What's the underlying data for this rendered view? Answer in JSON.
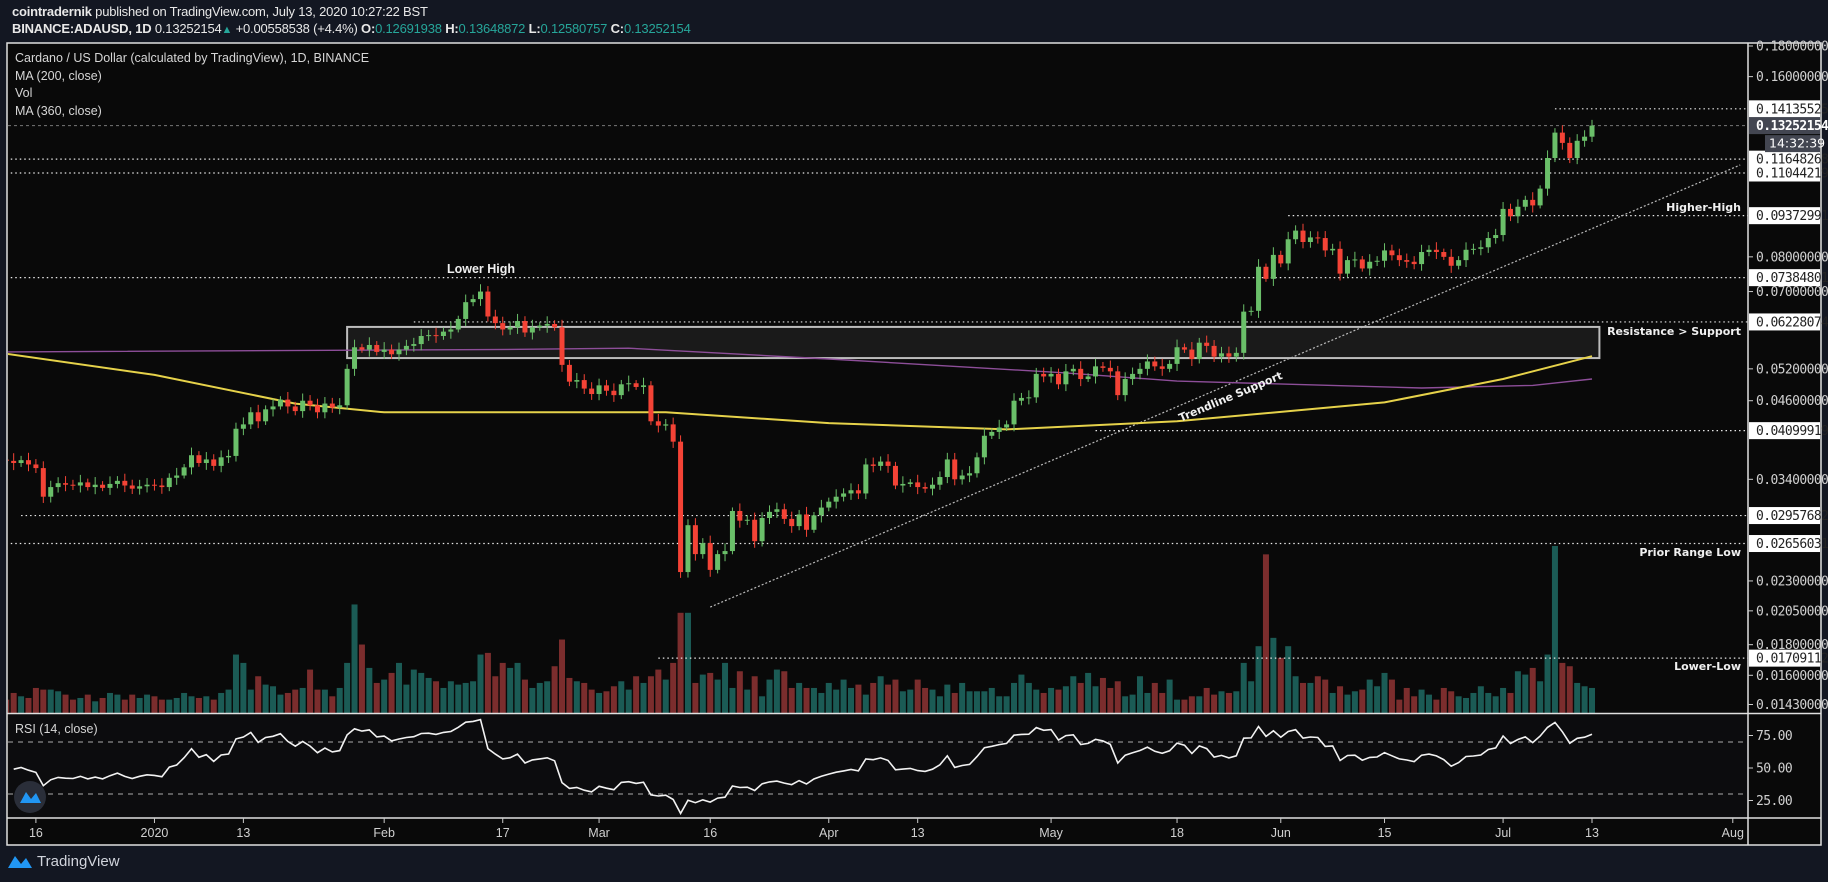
{
  "header": {
    "author": "cointradernik",
    "published": " published on TradingView.com, July 13, 2020 10:27:22 BST",
    "symbol": "BINANCE:ADAUSD, 1D",
    "last": "0.13252154",
    "change": "+0.00558538 (+4.4%)",
    "o_label": "O:",
    "o": "0.12691938",
    "h_label": "H:",
    "h": "0.13648872",
    "l_label": "L:",
    "l": "0.12580757",
    "c_label": "C:",
    "c": "0.13252154"
  },
  "legend": {
    "title": "Cardano / US Dollar (calculated by TradingView), 1D, BINANCE",
    "ma200": "MA (200, close)",
    "vol": "Vol",
    "ma360": "MA (360, close)",
    "rsi": "RSI (14, close)"
  },
  "colors": {
    "up": "#6abf69",
    "down": "#f44336",
    "vol_up": "#1b5b55",
    "vol_down": "#7b2d2d",
    "ma200": "#e6d24a",
    "ma360": "#8d4e99",
    "background": "#090909",
    "header": "#131722",
    "logo": "#2196f3"
  },
  "footer": {
    "brand": "TradingView"
  },
  "chart_data": {
    "type": "candlestick",
    "price_scale": "log",
    "first_date": "2019-12-12",
    "last_date": "2020-07-13",
    "close": [
      0.0365,
      0.0362,
      0.0366,
      0.036,
      0.0355,
      0.0318,
      0.033,
      0.0335,
      0.0333,
      0.0332,
      0.0336,
      0.033,
      0.0333,
      0.0329,
      0.0334,
      0.0338,
      0.0332,
      0.0328,
      0.0331,
      0.0333,
      0.0332,
      0.033,
      0.0342,
      0.0345,
      0.0356,
      0.0373,
      0.0362,
      0.0367,
      0.0358,
      0.037,
      0.0372,
      0.0413,
      0.042,
      0.044,
      0.0425,
      0.0445,
      0.045,
      0.0462,
      0.045,
      0.0442,
      0.046,
      0.0452,
      0.044,
      0.0455,
      0.0448,
      0.0452,
      0.052,
      0.0565,
      0.056,
      0.057,
      0.0555,
      0.056,
      0.055,
      0.056,
      0.0568,
      0.0572,
      0.059,
      0.0592,
      0.059,
      0.06,
      0.0605,
      0.063,
      0.0672,
      0.068,
      0.07,
      0.0636,
      0.062,
      0.0605,
      0.061,
      0.0625,
      0.0598,
      0.061,
      0.0614,
      0.0618,
      0.061,
      0.0528,
      0.0495,
      0.0498,
      0.0482,
      0.0472,
      0.0488,
      0.0478,
      0.047,
      0.049,
      0.0492,
      0.0485,
      0.0488,
      0.0425,
      0.0418,
      0.042,
      0.0393,
      0.0238,
      0.0285,
      0.0255,
      0.0266,
      0.024,
      0.0255,
      0.0258,
      0.0301,
      0.029,
      0.0291,
      0.0268,
      0.0293,
      0.03,
      0.0303,
      0.0292,
      0.0284,
      0.0297,
      0.028,
      0.0296,
      0.0305,
      0.0312,
      0.0318,
      0.0322,
      0.0326,
      0.0322,
      0.036,
      0.0358,
      0.0364,
      0.0358,
      0.0332,
      0.0334,
      0.0336,
      0.033,
      0.0328,
      0.0333,
      0.0343,
      0.0367,
      0.034,
      0.0345,
      0.0348,
      0.037,
      0.0402,
      0.0408,
      0.0415,
      0.042,
      0.046,
      0.0465,
      0.0466,
      0.051,
      0.0505,
      0.051,
      0.049,
      0.0515,
      0.052,
      0.05,
      0.0505,
      0.0525,
      0.0522,
      0.0515,
      0.047,
      0.05,
      0.051,
      0.052,
      0.0535,
      0.0525,
      0.052,
      0.053,
      0.0565,
      0.056,
      0.054,
      0.0575,
      0.0568,
      0.0545,
      0.0552,
      0.0545,
      0.0553,
      0.0648,
      0.065,
      0.077,
      0.0735,
      0.0806,
      0.078,
      0.0856,
      0.0885,
      0.0847,
      0.0862,
      0.086,
      0.082,
      0.0825,
      0.075,
      0.079,
      0.0792,
      0.0765,
      0.0785,
      0.0788,
      0.082,
      0.0805,
      0.079,
      0.0785,
      0.0778,
      0.0815,
      0.0822,
      0.0815,
      0.08,
      0.0773,
      0.079,
      0.0822,
      0.0825,
      0.083,
      0.086,
      0.087,
      0.0962,
      0.0935,
      0.097,
      0.0996,
      0.0975,
      0.104,
      0.117,
      0.129,
      0.124,
      0.117,
      0.125,
      0.127,
      0.13252154
    ],
    "volume_relative": [
      8,
      12,
      10,
      9,
      15,
      14,
      14,
      13,
      11,
      8,
      9,
      11,
      7,
      9,
      12,
      11,
      8,
      11,
      9,
      11,
      10,
      8,
      8,
      9,
      12,
      10,
      9,
      10,
      8,
      12,
      14,
      35,
      30,
      14,
      22,
      17,
      16,
      11,
      12,
      14,
      15,
      26,
      14,
      14,
      10,
      15,
      30,
      65,
      41,
      27,
      18,
      20,
      24,
      30,
      17,
      26,
      24,
      21,
      19,
      15,
      19,
      17,
      18,
      19,
      35,
      36,
      22,
      30,
      27,
      30,
      20,
      15,
      18,
      19,
      28,
      44,
      21,
      19,
      18,
      14,
      12,
      13,
      16,
      19,
      14,
      22,
      18,
      22,
      26,
      20,
      30,
      60,
      60,
      18,
      23,
      24,
      20,
      30,
      15,
      25,
      14,
      22,
      10,
      20,
      26,
      25,
      15,
      18,
      15,
      15,
      12,
      18,
      14,
      20,
      15,
      17,
      11,
      18,
      22,
      17,
      20,
      13,
      14,
      20,
      15,
      14,
      10,
      17,
      12,
      18,
      13,
      13,
      13,
      15,
      10,
      10,
      18,
      23,
      18,
      14,
      12,
      15,
      14,
      16,
      22,
      18,
      24,
      16,
      21,
      15,
      19,
      10,
      11,
      22,
      12,
      18,
      12,
      20,
      8,
      8,
      10,
      10,
      15,
      11,
      13,
      12,
      13,
      30,
      19,
      40,
      95,
      45,
      33,
      40,
      22,
      18,
      18,
      22,
      20,
      12,
      16,
      11,
      13,
      14,
      20,
      16,
      24,
      20,
      8,
      15,
      10,
      14,
      11,
      8,
      15,
      13,
      10,
      9,
      12,
      16,
      12,
      10,
      15,
      12,
      25,
      23,
      27,
      19,
      35,
      100,
      30,
      28,
      18,
      16,
      15
    ],
    "ma200": [
      [
        "2019-12-12",
        0.0551
      ],
      [
        "2020-01-01",
        0.0508
      ],
      [
        "2020-01-20",
        0.0455
      ],
      [
        "2020-02-01",
        0.044
      ],
      [
        "2020-03-10",
        0.044
      ],
      [
        "2020-04-01",
        0.0422
      ],
      [
        "2020-04-25",
        0.0412
      ],
      [
        "2020-05-18",
        0.0425
      ],
      [
        "2020-06-15",
        0.0457
      ],
      [
        "2020-07-01",
        0.05
      ],
      [
        "2020-07-13",
        0.0546
      ]
    ],
    "ma360": [
      [
        "2019-12-12",
        0.0555
      ],
      [
        "2020-02-15",
        0.056
      ],
      [
        "2020-03-05",
        0.0563
      ],
      [
        "2020-04-01",
        0.054
      ],
      [
        "2020-05-03",
        0.0512
      ],
      [
        "2020-05-18",
        0.0496
      ],
      [
        "2020-06-20",
        0.0483
      ],
      [
        "2020-07-05",
        0.0488
      ],
      [
        "2020-07-13",
        0.05
      ]
    ],
    "rsi_levels": [
      70,
      30
    ],
    "price_ticks": [
      "0.18000000",
      "0.16000000",
      "0.08000000",
      "0.07000000",
      "0.05200000",
      "0.04600000",
      "0.03400000",
      "0.02300000",
      "0.02050000",
      "0.01800000",
      "0.01600000",
      "0.01430000"
    ],
    "rsi_ticks": [
      "75.00",
      "50.00",
      "25.00"
    ],
    "time_ticks": [
      {
        "date": "2019-12-16",
        "label": "16"
      },
      {
        "date": "2020-01-01",
        "label": "2020"
      },
      {
        "date": "2020-01-13",
        "label": "13"
      },
      {
        "date": "2020-02-01",
        "label": "Feb"
      },
      {
        "date": "2020-02-17",
        "label": "17"
      },
      {
        "date": "2020-03-01",
        "label": "Mar"
      },
      {
        "date": "2020-03-16",
        "label": "16"
      },
      {
        "date": "2020-04-01",
        "label": "Apr"
      },
      {
        "date": "2020-04-13",
        "label": "13"
      },
      {
        "date": "2020-05-01",
        "label": "May"
      },
      {
        "date": "2020-05-18",
        "label": "18"
      },
      {
        "date": "2020-06-01",
        "label": "Jun"
      },
      {
        "date": "2020-06-15",
        "label": "15"
      },
      {
        "date": "2020-07-01",
        "label": "Jul"
      },
      {
        "date": "2020-07-13",
        "label": "13"
      },
      {
        "date": "2020-08-01",
        "label": "Aug"
      }
    ],
    "current_price": {
      "label": "0.13252154",
      "countdown": "14:32:39"
    },
    "horizontal_lines": [
      {
        "price": "0.14135525",
        "from": "2020-07-08"
      },
      {
        "price": "0.11648268",
        "from": "2019-12-12"
      },
      {
        "price": "0.11044219",
        "from": "2019-12-12"
      },
      {
        "price": "0.09372991",
        "from": "2020-06-02"
      },
      {
        "price": "0.07384801",
        "from": "2019-12-12"
      },
      {
        "price": "0.06228074",
        "from": "2020-02-05"
      },
      {
        "price": "0.04099919",
        "from": "2020-05-07"
      },
      {
        "price": "0.02957682",
        "from": "2019-12-14"
      },
      {
        "price": "0.02656031",
        "from": "2019-12-12"
      },
      {
        "price": "0.01709112",
        "from": "2020-03-09"
      }
    ],
    "zone": {
      "from": "2020-01-27",
      "to": "2020-07-14",
      "top": 0.0611,
      "bottom": 0.0542
    },
    "trendline": {
      "from": [
        "2020-03-16",
        0.0208
      ],
      "to": [
        "2020-08-02",
        0.1139
      ]
    },
    "annotations": {
      "lower_high": "Lower High",
      "higher_high": "Higher-High",
      "resistance_support": "Resistance > Support",
      "prior_range_low": "Prior Range Low",
      "lower_low": "Lower-Low",
      "trendline_support": "Trendline Support"
    }
  }
}
